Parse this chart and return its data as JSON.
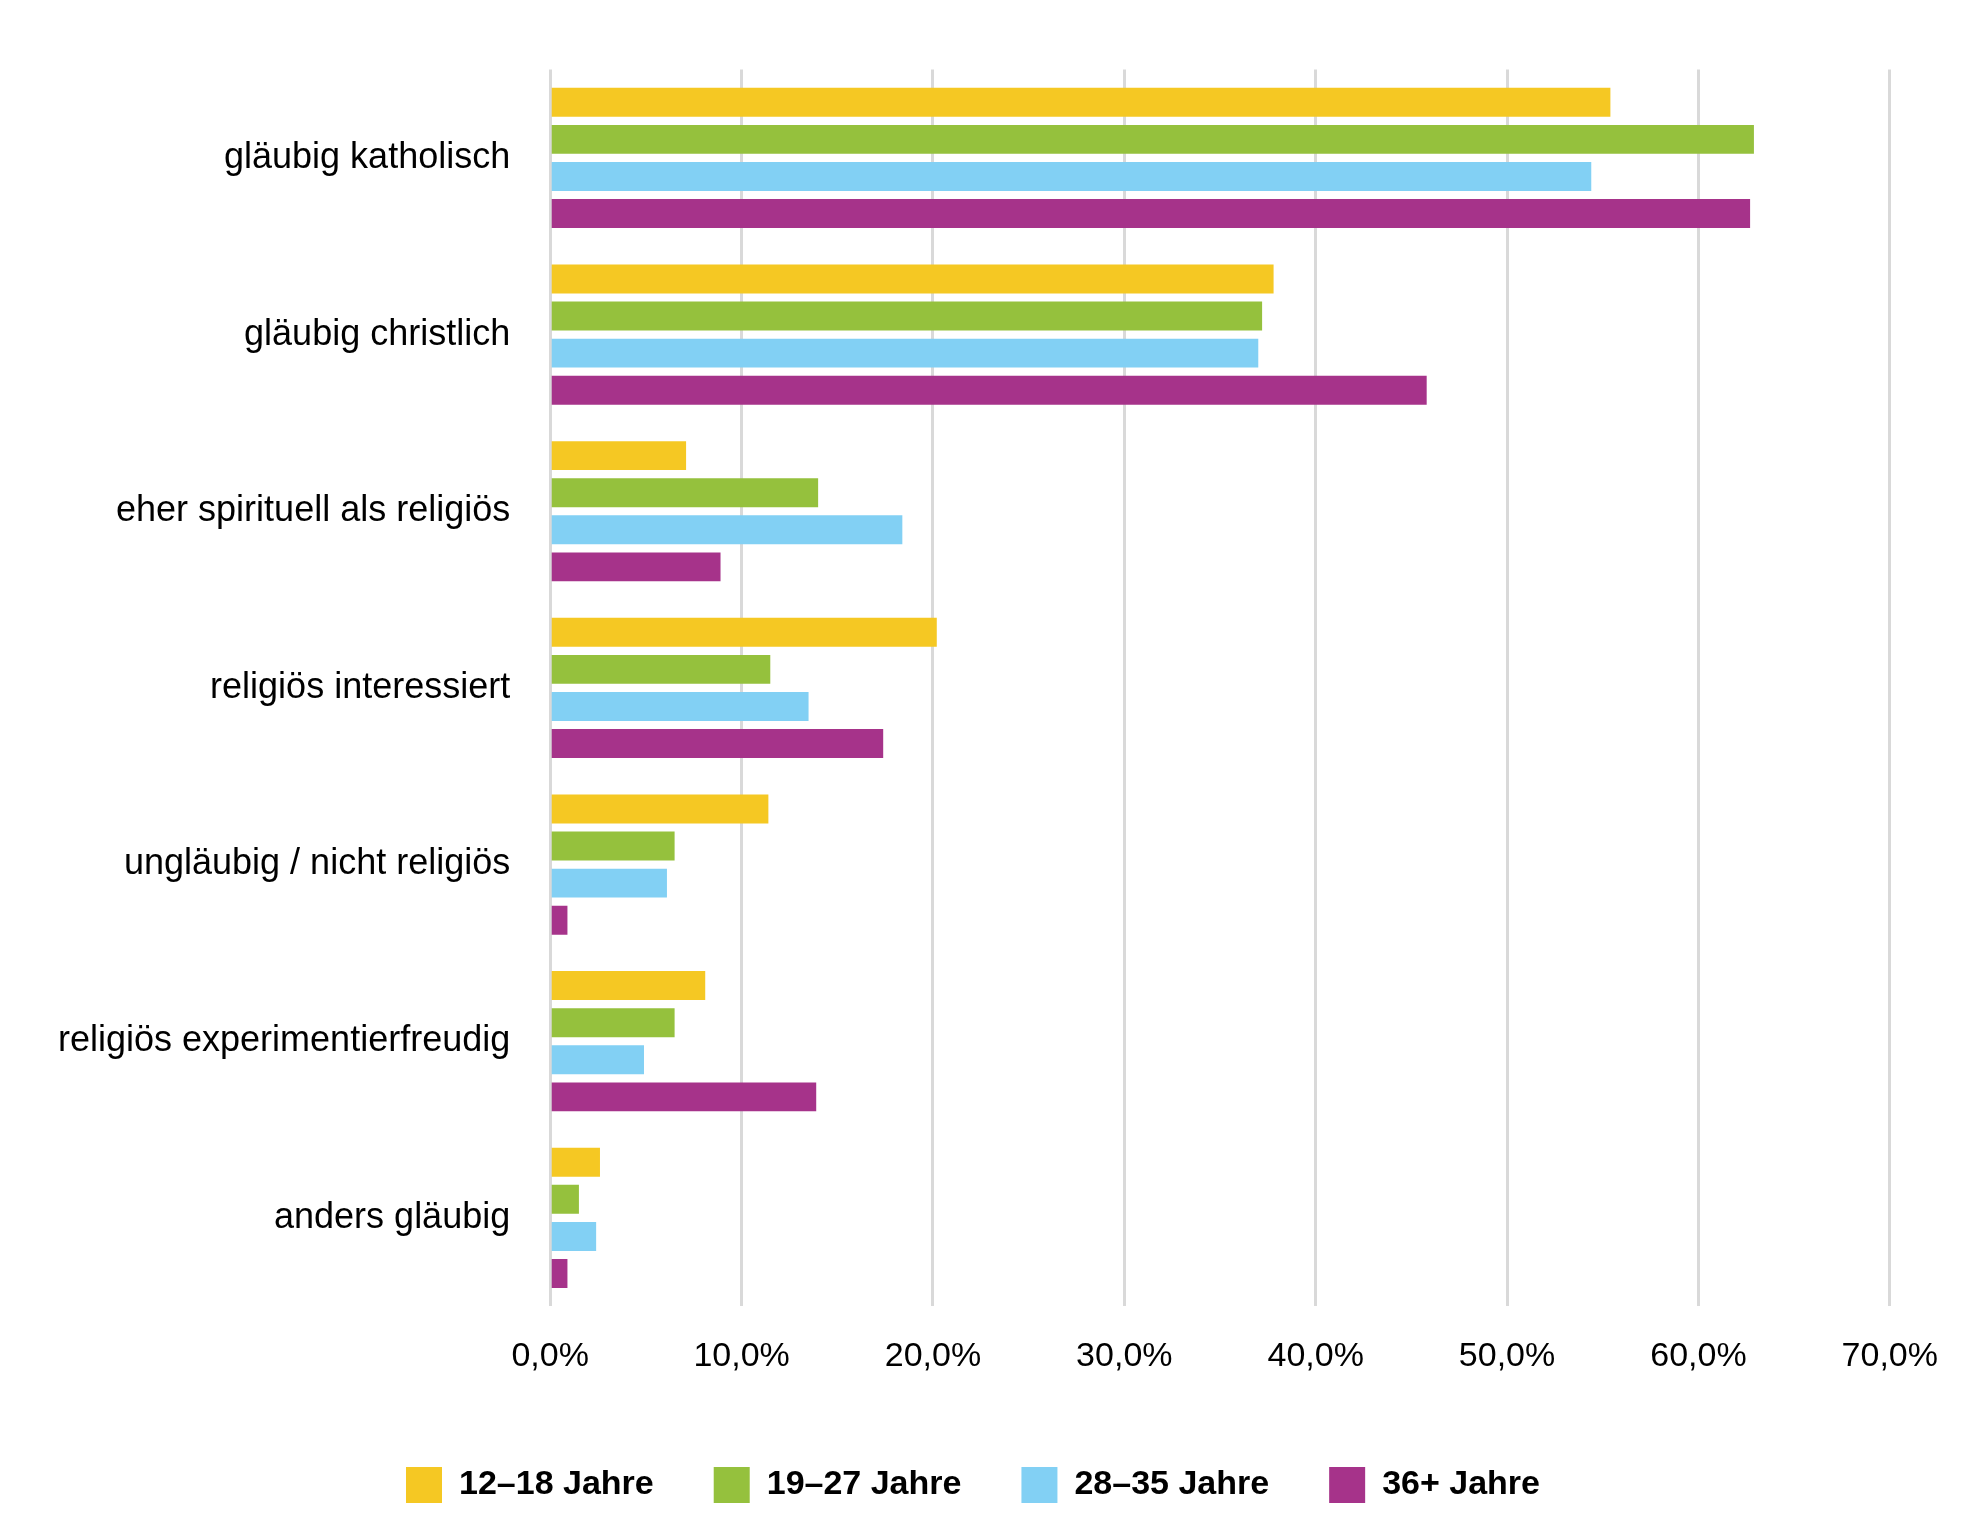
{
  "chart_data": {
    "type": "bar",
    "orientation": "horizontal",
    "categories": [
      "gläubig katholisch",
      "gläubig christlich",
      "eher spirituell als religiös",
      "religiös interessiert",
      "ungläubig / nicht religiös",
      "religiös experimentierfreudig",
      "anders gläubig"
    ],
    "series": [
      {
        "name": "12–18 Jahre",
        "color": "#f5c823",
        "values": [
          55.4,
          37.8,
          7.1,
          20.2,
          11.4,
          8.1,
          2.6
        ]
      },
      {
        "name": "19–27 Jahre",
        "color": "#95c13d",
        "values": [
          62.9,
          37.2,
          14.0,
          11.5,
          6.5,
          6.5,
          1.5
        ]
      },
      {
        "name": "28–35 Jahre",
        "color": "#82d0f4",
        "values": [
          54.4,
          37.0,
          18.4,
          13.5,
          6.1,
          4.9,
          2.4
        ]
      },
      {
        "name": "36+ Jahre",
        "color": "#a6338a",
        "values": [
          62.7,
          45.8,
          8.9,
          17.4,
          0.9,
          13.9,
          0.9
        ]
      }
    ],
    "xlim": [
      0,
      70
    ],
    "xticks": [
      {
        "value": 0,
        "label": "0,0%"
      },
      {
        "value": 10,
        "label": "10,0%"
      },
      {
        "value": 20,
        "label": "20,0%"
      },
      {
        "value": 30,
        "label": "30,0%"
      },
      {
        "value": 40,
        "label": "40,0%"
      },
      {
        "value": 50,
        "label": "50,0%"
      },
      {
        "value": 60,
        "label": "60,0%"
      },
      {
        "value": 70,
        "label": "70,0%"
      }
    ],
    "grid": "x",
    "legend": "bottom"
  }
}
